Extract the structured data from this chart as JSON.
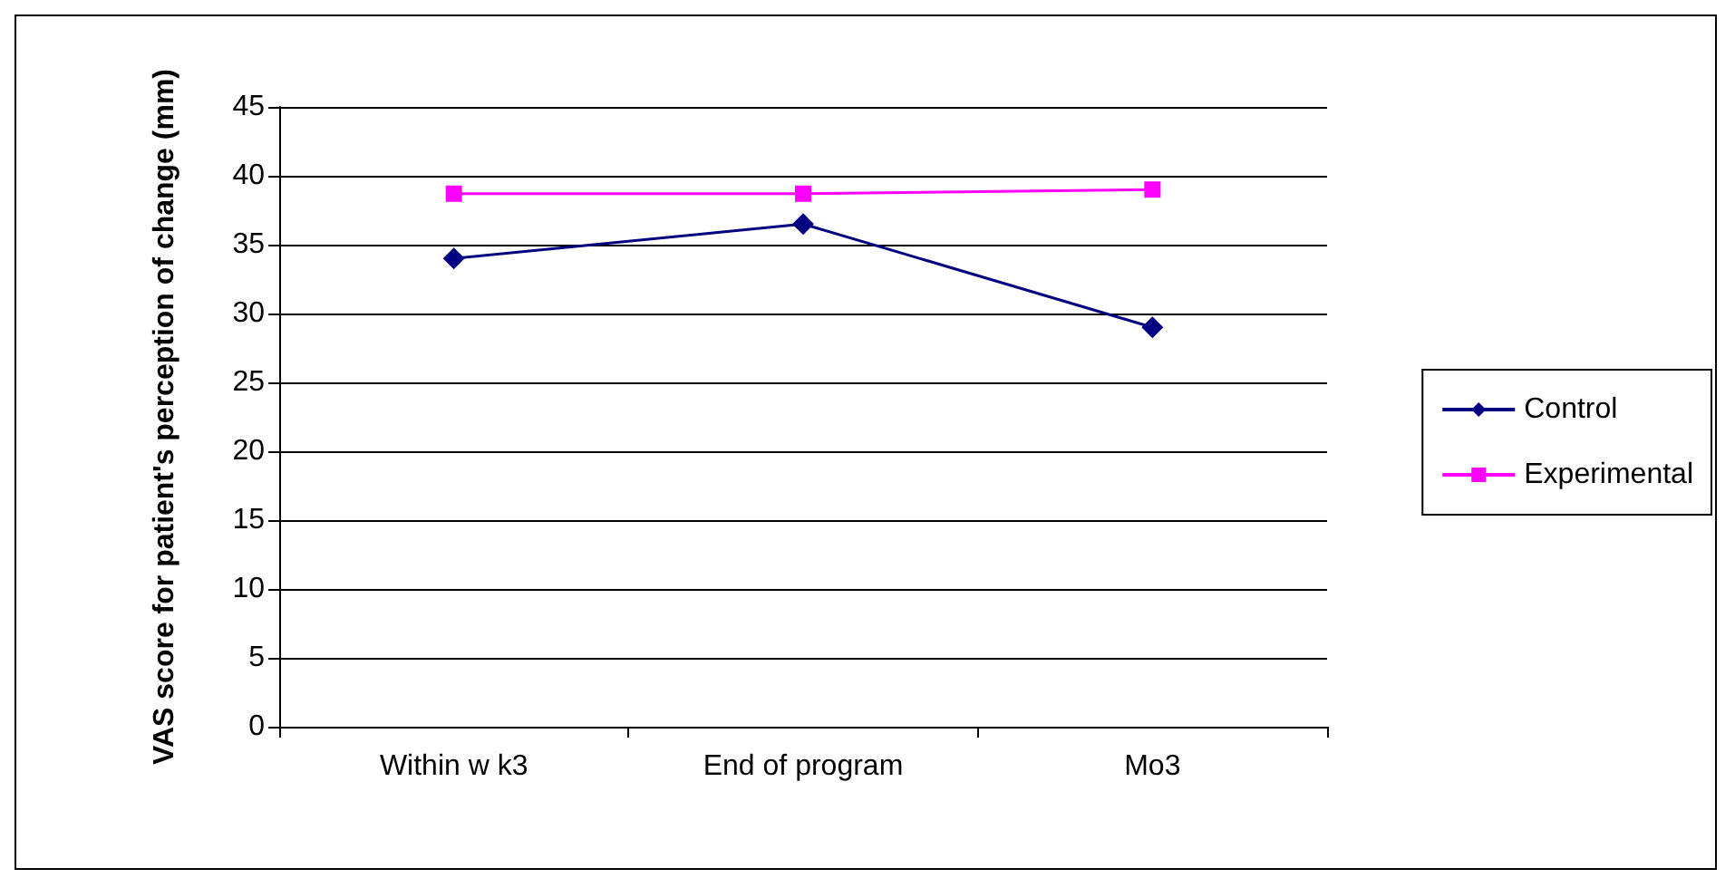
{
  "chart_data": {
    "type": "line",
    "ylabel": "VAS score for patient's perception of change (mm)",
    "categories": [
      "Within w k3",
      "End of program",
      "Mo3"
    ],
    "series": [
      {
        "name": "Control",
        "color": "#000080",
        "marker": "diamond",
        "values": [
          34,
          36.5,
          29
        ]
      },
      {
        "name": "Experimental",
        "color": "#ff00ff",
        "marker": "square",
        "values": [
          38.7,
          38.7,
          39
        ]
      }
    ],
    "ylim": [
      0,
      45
    ],
    "yticks": [
      0,
      5,
      10,
      15,
      20,
      25,
      30,
      35,
      40,
      45
    ],
    "grid": "y",
    "legend": "right"
  }
}
